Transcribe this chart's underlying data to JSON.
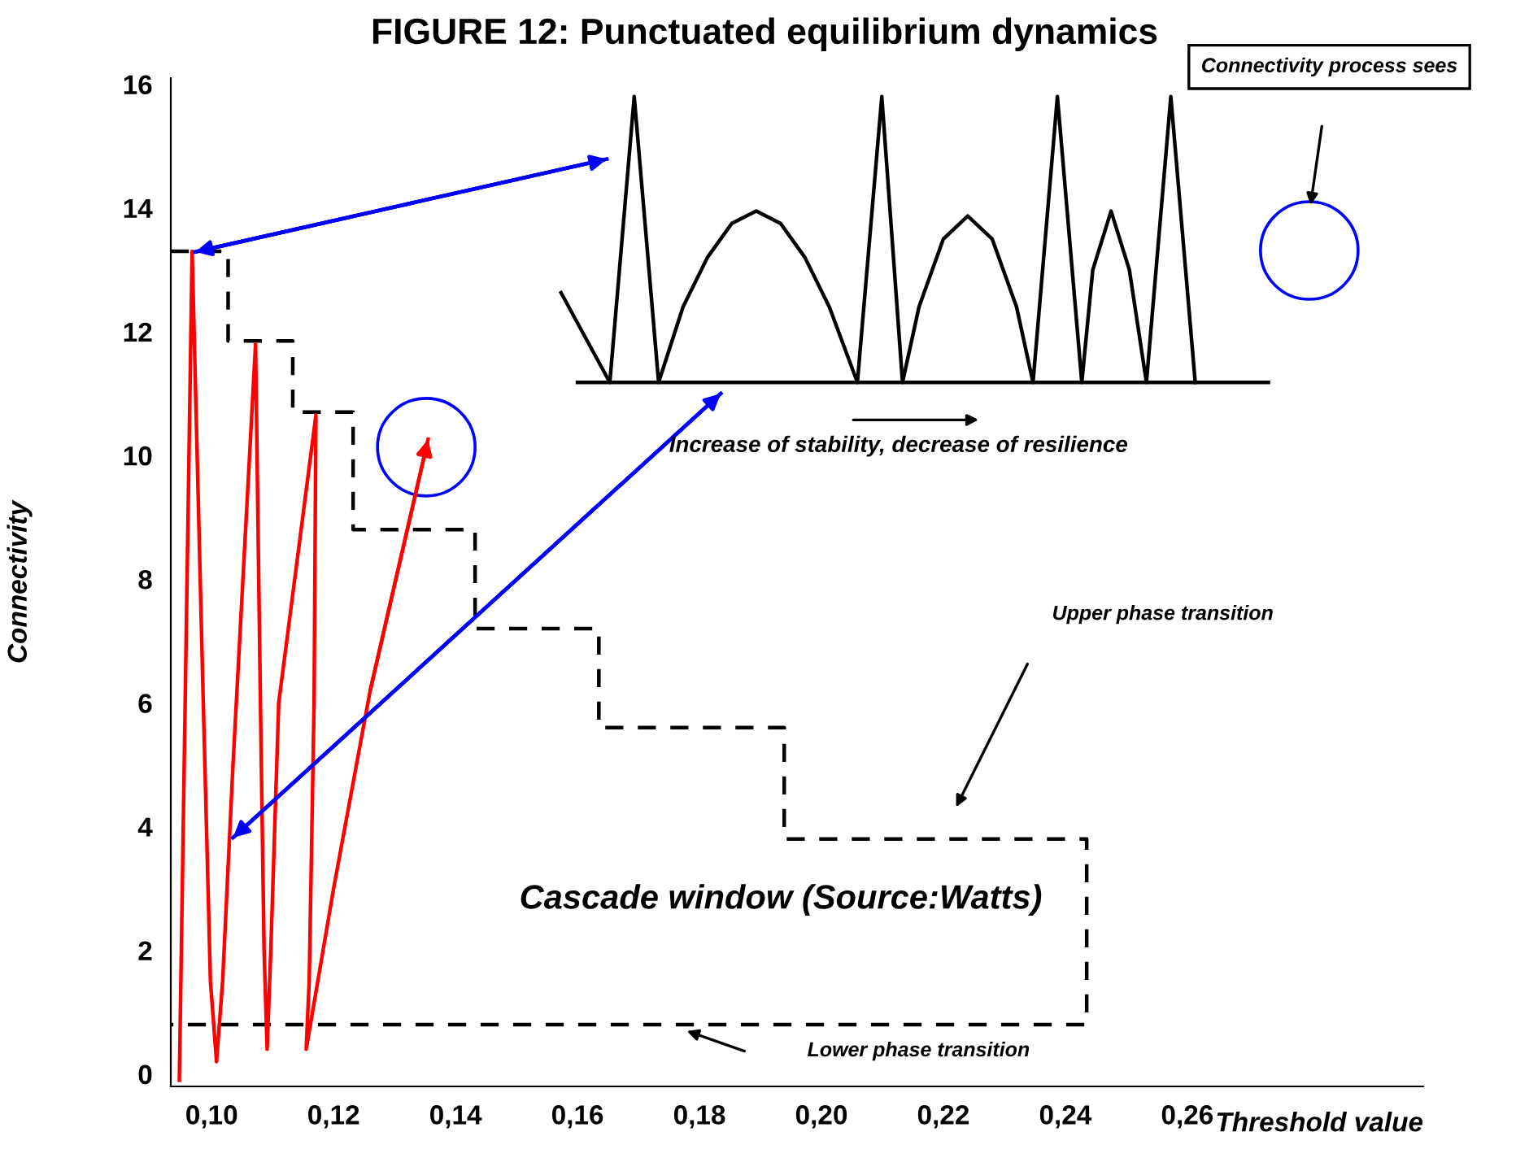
{
  "chart_data": {
    "type": "line",
    "title": "FIGURE 12: Punctuated equilibrium dynamics",
    "xlabel": "Threshold value",
    "ylabel": "Connectivity",
    "xlim": [
      0.0933,
      0.2987
    ],
    "ylim": [
      -0.2,
      16.1
    ],
    "xticks": [
      {
        "value": 0.1,
        "label": "0,10"
      },
      {
        "value": 0.12,
        "label": "0,12"
      },
      {
        "value": 0.14,
        "label": "0,14"
      },
      {
        "value": 0.16,
        "label": "0,16"
      },
      {
        "value": 0.18,
        "label": "0,18"
      },
      {
        "value": 0.2,
        "label": "0,20"
      },
      {
        "value": 0.22,
        "label": "0,22"
      },
      {
        "value": 0.24,
        "label": "0,24"
      },
      {
        "value": 0.26,
        "label": "0,26"
      }
    ],
    "yticks": [
      0,
      2,
      4,
      6,
      8,
      10,
      12,
      14,
      16
    ],
    "grid": false,
    "marker": "none",
    "series": [
      {
        "color": "#000000",
        "line_style": "dashed",
        "x": [
          0.0933,
          0.1027,
          0.1027,
          0.1133,
          0.1133,
          0.1232,
          0.1232,
          0.1432,
          0.1432,
          0.1635,
          0.1635,
          0.1939,
          0.1939,
          0.2435,
          0.2435,
          0.0933
        ],
        "values": [
          13.3,
          13.3,
          11.85,
          11.85,
          10.7,
          10.7,
          8.8,
          8.8,
          7.2,
          7.2,
          5.6,
          5.6,
          3.8,
          3.8,
          0.8,
          0.8
        ]
      },
      {
        "color": "#ff0000",
        "line_style": "solid",
        "x": [
          0.0947,
          0.0968,
          0.0985,
          0.0998,
          0.1008,
          0.1018,
          0.1035,
          0.1072,
          0.108,
          0.1086,
          0.1091,
          0.1097,
          0.111,
          0.1171,
          0.1168,
          0.116,
          0.1155,
          0.1162,
          0.12,
          0.126,
          0.1355
        ],
        "values": [
          -0.1,
          13.3,
          6.5,
          1.5,
          0.2,
          1.5,
          5.0,
          11.8,
          6.0,
          2.0,
          0.4,
          2.0,
          6.0,
          10.65,
          6.0,
          1.5,
          0.4,
          0.8,
          3.0,
          6.2,
          10.26
        ]
      },
      {
        "color": "#000000",
        "line_style": "solid",
        "x": [
          0.1573,
          0.1653,
          0.1693,
          0.1733,
          0.1773,
          0.1813,
          0.1853,
          0.1893,
          0.1933,
          0.1973,
          0.2013,
          0.2059,
          0.2099,
          0.2133,
          0.216,
          0.22,
          0.224,
          0.228,
          0.232,
          0.2347,
          0.2387,
          0.2427,
          0.2445,
          0.2475,
          0.2505,
          0.2533,
          0.2573,
          0.2613
        ],
        "values": [
          12.63,
          11.18,
          15.8,
          11.18,
          12.4,
          13.2,
          13.75,
          13.95,
          13.75,
          13.2,
          12.4,
          11.18,
          15.8,
          11.18,
          12.4,
          13.5,
          13.87,
          13.5,
          12.4,
          11.18,
          15.8,
          11.18,
          13.0,
          13.95,
          13.0,
          11.18,
          15.8,
          11.18
        ]
      },
      {
        "color": "#000000",
        "line_style": "solid",
        "x": [
          0.16,
          0.2733
        ],
        "values": [
          11.18,
          11.18
        ]
      },
      {
        "color": "#0000ff",
        "line_style": "solid",
        "x": [
          0.0973,
          0.1648
        ],
        "values": [
          13.29,
          14.79
        ]
      },
      {
        "color": "#0000ff",
        "line_style": "solid",
        "x": [
          0.1035,
          0.1835
        ],
        "values": [
          3.82,
          11.0
        ]
      }
    ],
    "annotations": [
      "Connectivity process sees",
      "Increase of stability, decrease of resilience",
      "Upper phase transition",
      "Cascade window (Source:Watts)",
      "Lower phase transition"
    ]
  }
}
